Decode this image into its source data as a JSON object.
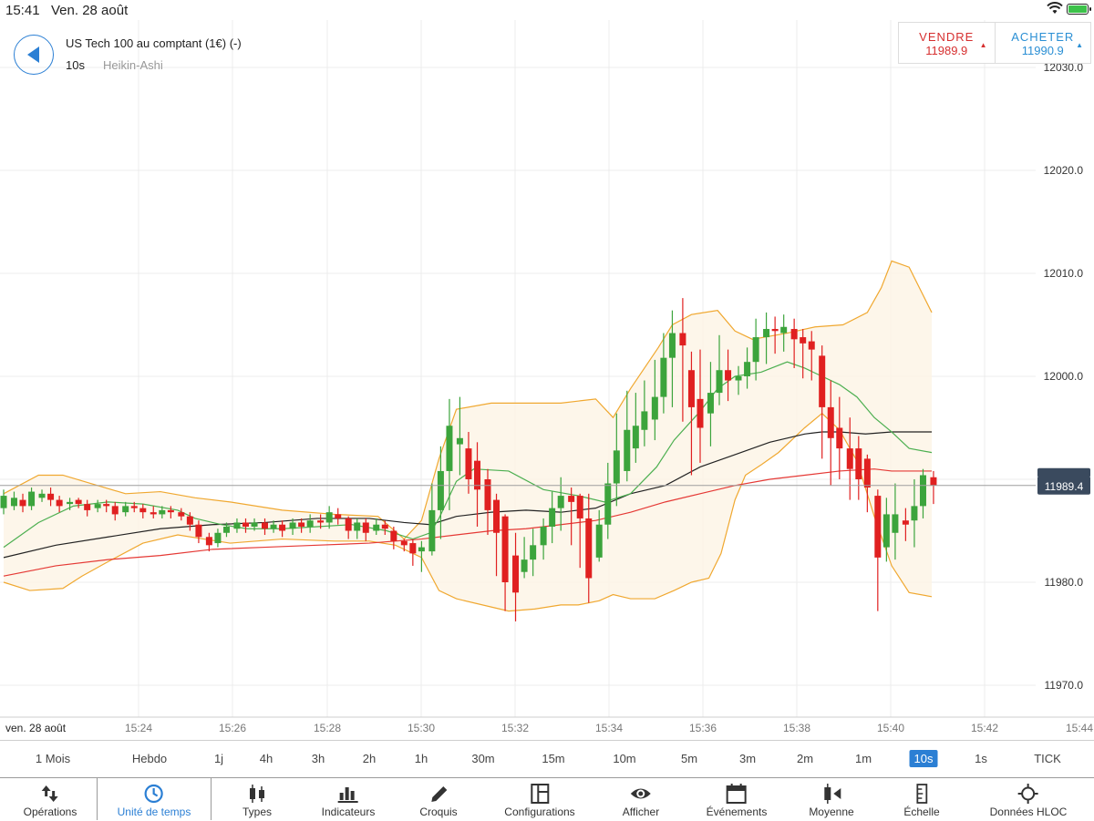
{
  "status_bar": {
    "time": "15:41",
    "date": "Ven. 28 août"
  },
  "header": {
    "instrument": "US Tech 100 au comptant (1€) (-)",
    "interval": "10s",
    "chart_type": "Heikin-Ashi"
  },
  "trade": {
    "sell_label": "VENDRE",
    "sell_price": "11989.9",
    "buy_label": "ACHETER",
    "buy_price": "11990.9"
  },
  "colors": {
    "up": "#3ca43c",
    "down": "#e02020",
    "accent": "#2b7fd4",
    "bollinger": "#f0a830",
    "ma_green": "#4caf50",
    "ma_black": "#222222",
    "ma_red": "#e53935"
  },
  "chart_data": {
    "type": "candlestick",
    "title": "",
    "x_labels": [
      "ven. 28 août",
      "15:24",
      "15:26",
      "15:28",
      "15:30",
      "15:32",
      "15:34",
      "15:36",
      "15:38",
      "15:40",
      "15:42",
      "15:44"
    ],
    "y_ticks": [
      "12030.0",
      "12020.0",
      "12010.0",
      "12000.0",
      "11980.0",
      "11970.0"
    ],
    "ylim": [
      11966.0,
      12031.5
    ],
    "current_price_label": "11989.4",
    "current_price": 11989.4,
    "grid": true,
    "candles": [
      [
        0.0,
        11987.2,
        11988.4,
        11986.6,
        11989.0
      ],
      [
        0.6,
        11987.4,
        11988.2,
        11987.0,
        11988.8
      ],
      [
        1.1,
        11988.0,
        11987.4,
        11986.8,
        11988.6
      ],
      [
        1.6,
        11987.4,
        11988.8,
        11987.0,
        11989.2
      ],
      [
        2.2,
        11988.2,
        11988.6,
        11987.8,
        11989.0
      ],
      [
        2.7,
        11988.6,
        11988.0,
        11987.4,
        11989.2
      ],
      [
        3.2,
        11988.0,
        11987.4,
        11986.8,
        11988.4
      ],
      [
        3.8,
        11987.6,
        11987.8,
        11987.0,
        11988.2
      ],
      [
        4.3,
        11988.0,
        11987.6,
        11987.2,
        11988.2
      ],
      [
        4.8,
        11987.6,
        11987.0,
        11986.4,
        11988.0
      ],
      [
        5.4,
        11987.2,
        11987.6,
        11986.8,
        11988.0
      ],
      [
        5.9,
        11987.6,
        11987.4,
        11986.8,
        11988.0
      ],
      [
        6.4,
        11987.4,
        11986.6,
        11986.0,
        11987.8
      ],
      [
        7.0,
        11986.8,
        11987.4,
        11986.4,
        11987.8
      ],
      [
        7.5,
        11987.4,
        11987.2,
        11986.8,
        11987.8
      ],
      [
        8.0,
        11987.2,
        11986.8,
        11986.2,
        11987.6
      ],
      [
        8.6,
        11986.8,
        11986.6,
        11986.2,
        11987.4
      ],
      [
        9.1,
        11986.6,
        11987.0,
        11986.2,
        11987.4
      ],
      [
        9.6,
        11987.0,
        11986.8,
        11986.2,
        11987.4
      ],
      [
        10.2,
        11986.8,
        11986.4,
        11986.0,
        11987.2
      ],
      [
        10.7,
        11986.4,
        11985.6,
        11985.0,
        11986.8
      ],
      [
        11.2,
        11985.6,
        11984.4,
        11983.8,
        11986.0
      ],
      [
        11.8,
        11984.4,
        11983.6,
        11983.0,
        11984.8
      ],
      [
        12.3,
        11983.8,
        11984.8,
        11983.4,
        11985.2
      ],
      [
        12.8,
        11984.8,
        11985.4,
        11984.4,
        11985.8
      ],
      [
        13.4,
        11985.2,
        11985.8,
        11984.8,
        11986.2
      ],
      [
        13.9,
        11985.8,
        11985.4,
        11984.8,
        11986.2
      ],
      [
        14.4,
        11985.4,
        11985.8,
        11985.0,
        11986.2
      ],
      [
        15.0,
        11985.8,
        11985.2,
        11984.6,
        11986.2
      ],
      [
        15.5,
        11985.2,
        11985.6,
        11984.8,
        11986.0
      ],
      [
        16.0,
        11985.6,
        11985.0,
        11984.4,
        11986.0
      ],
      [
        16.6,
        11985.2,
        11985.8,
        11984.6,
        11986.2
      ],
      [
        17.1,
        11985.8,
        11985.4,
        11984.8,
        11986.2
      ],
      [
        17.6,
        11985.4,
        11986.0,
        11984.8,
        11986.6
      ],
      [
        18.2,
        11986.0,
        11985.8,
        11985.2,
        11986.6
      ],
      [
        18.7,
        11985.8,
        11986.8,
        11985.2,
        11987.4
      ],
      [
        19.2,
        11986.6,
        11986.2,
        11985.6,
        11987.2
      ],
      [
        19.8,
        11986.2,
        11985.0,
        11984.2,
        11986.4
      ],
      [
        20.3,
        11985.0,
        11985.8,
        11984.2,
        11986.2
      ],
      [
        20.8,
        11985.8,
        11984.8,
        11984.0,
        11986.2
      ],
      [
        21.4,
        11985.0,
        11985.6,
        11984.6,
        11986.2
      ],
      [
        21.9,
        11985.6,
        11985.2,
        11984.6,
        11986.0
      ],
      [
        22.4,
        11985.0,
        11984.0,
        11983.2,
        11985.4
      ],
      [
        23.0,
        11984.0,
        11983.6,
        11983.0,
        11984.2
      ],
      [
        23.5,
        11983.8,
        11982.8,
        11981.6,
        11984.2
      ],
      [
        24.0,
        11983.0,
        11983.4,
        11981.0,
        11984.0
      ],
      [
        24.6,
        11983.0,
        11987.0,
        11982.6,
        11989.6
      ],
      [
        25.1,
        11987.0,
        11990.8,
        11984.2,
        11993.2
      ],
      [
        25.6,
        11990.8,
        11995.2,
        11987.0,
        11997.8
      ],
      [
        26.2,
        11993.4,
        11994.0,
        11990.4,
        11998.0
      ],
      [
        26.7,
        11993.0,
        11990.0,
        11988.6,
        11994.6
      ],
      [
        27.2,
        11991.8,
        11989.0,
        11985.4,
        11993.6
      ],
      [
        27.8,
        11990.0,
        11987.0,
        11984.6,
        11991.0
      ],
      [
        28.3,
        11988.0,
        11984.8,
        11980.6,
        11988.6
      ],
      [
        28.8,
        11986.4,
        11980.0,
        11977.2,
        11986.6
      ],
      [
        29.4,
        11982.6,
        11979.0,
        11976.2,
        11984.8
      ],
      [
        29.9,
        11981.0,
        11982.2,
        11980.4,
        11984.4
      ],
      [
        30.4,
        11982.2,
        11983.6,
        11980.6,
        11985.2
      ],
      [
        31.0,
        11983.6,
        11985.4,
        11982.2,
        11986.2
      ],
      [
        31.5,
        11985.4,
        11987.2,
        11983.8,
        11988.8
      ],
      [
        32.0,
        11987.2,
        11988.4,
        11985.0,
        11990.2
      ],
      [
        32.6,
        11988.4,
        11987.8,
        11983.6,
        11989.2
      ],
      [
        33.1,
        11988.4,
        11986.2,
        11981.4,
        11988.6
      ],
      [
        33.6,
        11986.2,
        11980.4,
        11978.0,
        11988.6
      ],
      [
        34.2,
        11982.4,
        11985.6,
        11982.0,
        11987.0
      ],
      [
        34.7,
        11985.6,
        11989.6,
        11984.2,
        11991.6
      ],
      [
        35.2,
        11989.6,
        11992.8,
        11987.4,
        11996.4
      ],
      [
        35.8,
        11990.8,
        11994.8,
        11989.8,
        11998.6
      ],
      [
        36.3,
        11993.0,
        11995.2,
        11991.6,
        11998.4
      ],
      [
        36.8,
        11994.8,
        11996.6,
        11993.2,
        11999.6
      ],
      [
        37.4,
        11995.8,
        11998.0,
        11993.8,
        12001.6
      ],
      [
        37.9,
        11998.0,
        12001.8,
        11996.4,
        12004.2
      ],
      [
        38.4,
        12001.8,
        12004.2,
        11997.0,
        12006.4
      ],
      [
        39.0,
        12004.2,
        12003.0,
        11995.6,
        12007.6
      ],
      [
        39.5,
        12000.6,
        11997.0,
        11990.4,
        12002.4
      ],
      [
        40.0,
        11997.8,
        11995.0,
        11991.6,
        12002.6
      ],
      [
        40.6,
        11996.4,
        11998.4,
        11993.2,
        12001.4
      ],
      [
        41.1,
        11998.4,
        12000.6,
        11997.2,
        12004.0
      ],
      [
        41.6,
        12000.6,
        11999.6,
        11997.6,
        12002.6
      ],
      [
        42.2,
        11999.6,
        12000.0,
        11998.2,
        12001.0
      ],
      [
        42.7,
        12000.0,
        12001.4,
        11998.8,
        12002.8
      ],
      [
        43.2,
        12001.4,
        12003.8,
        11999.6,
        12005.6
      ],
      [
        43.8,
        12003.8,
        12004.6,
        12001.2,
        12006.2
      ],
      [
        44.3,
        12004.6,
        12004.4,
        12002.2,
        12005.8
      ],
      [
        44.8,
        12004.2,
        12004.8,
        12002.4,
        12006.0
      ],
      [
        45.4,
        12004.6,
        12003.6,
        12000.8,
        12005.6
      ],
      [
        45.9,
        12003.8,
        12003.2,
        11999.8,
        12004.6
      ],
      [
        46.4,
        12003.4,
        12002.6,
        11999.6,
        12004.4
      ],
      [
        47.0,
        12002.0,
        11997.0,
        11992.0,
        12003.0
      ],
      [
        47.5,
        11997.0,
        11994.0,
        11989.4,
        11999.6
      ],
      [
        48.0,
        11995.0,
        11993.0,
        11990.0,
        11998.0
      ],
      [
        48.6,
        11993.0,
        11991.0,
        11988.0,
        11996.0
      ],
      [
        49.1,
        11993.0,
        11990.0,
        11988.0,
        11994.2
      ],
      [
        49.6,
        11992.0,
        11989.2,
        11986.8,
        11992.4
      ],
      [
        50.2,
        11988.4,
        11982.4,
        11977.2,
        11989.0
      ],
      [
        50.7,
        11983.4,
        11986.6,
        11982.0,
        11988.2
      ],
      [
        51.2,
        11984.8,
        11986.6,
        11982.2,
        11989.6
      ],
      [
        51.8,
        11986.0,
        11985.6,
        11984.0,
        11987.2
      ],
      [
        52.3,
        11986.0,
        11987.4,
        11983.4,
        11990.0
      ],
      [
        52.8,
        11987.4,
        11990.4,
        11986.2,
        11991.0
      ],
      [
        53.4,
        11990.2,
        11989.4,
        11987.6,
        11990.8
      ]
    ],
    "bollinger_upper": [
      [
        0,
        11988.6
      ],
      [
        2,
        11990.4
      ],
      [
        3.4,
        11990.4
      ],
      [
        5,
        11989.6
      ],
      [
        7,
        11988.6
      ],
      [
        9,
        11988.8
      ],
      [
        11,
        11988.2
      ],
      [
        13,
        11987.8
      ],
      [
        16,
        11987.0
      ],
      [
        19,
        11986.6
      ],
      [
        21.5,
        11986.4
      ],
      [
        23,
        11984.2
      ],
      [
        24,
        11986.0
      ],
      [
        25,
        11992.0
      ],
      [
        26,
        11996.8
      ],
      [
        28,
        11997.4
      ],
      [
        32,
        11997.4
      ],
      [
        34,
        11997.8
      ],
      [
        35,
        11996.0
      ],
      [
        36,
        11998.8
      ],
      [
        37.6,
        12002.8
      ],
      [
        38.4,
        12005.0
      ],
      [
        39.5,
        12006.0
      ],
      [
        41,
        12006.4
      ],
      [
        42,
        12004.4
      ],
      [
        43,
        12003.6
      ],
      [
        45,
        12004.2
      ],
      [
        46.6,
        12004.8
      ],
      [
        48.2,
        12005.0
      ],
      [
        49.6,
        12006.2
      ],
      [
        50.4,
        12008.6
      ],
      [
        51,
        12011.2
      ],
      [
        52,
        12010.6
      ],
      [
        53.3,
        12006.2
      ]
    ],
    "bollinger_lower": [
      [
        0,
        11980.0
      ],
      [
        1.5,
        11979.2
      ],
      [
        3.4,
        11979.4
      ],
      [
        4.5,
        11980.6
      ],
      [
        6,
        11982.0
      ],
      [
        8,
        11983.8
      ],
      [
        10,
        11984.6
      ],
      [
        11.5,
        11984.2
      ],
      [
        13,
        11983.8
      ],
      [
        16,
        11984.2
      ],
      [
        19,
        11984.0
      ],
      [
        21,
        11984.0
      ],
      [
        22.5,
        11983.6
      ],
      [
        24,
        11982.4
      ],
      [
        25,
        11979.2
      ],
      [
        26,
        11978.4
      ],
      [
        28,
        11977.6
      ],
      [
        29,
        11977.2
      ],
      [
        30.5,
        11977.4
      ],
      [
        32,
        11977.8
      ],
      [
        33,
        11977.8
      ],
      [
        34.2,
        11978.2
      ],
      [
        35,
        11978.8
      ],
      [
        36,
        11978.4
      ],
      [
        37.4,
        11978.4
      ],
      [
        38.5,
        11979.2
      ],
      [
        39.5,
        11980.0
      ],
      [
        40.5,
        11980.4
      ],
      [
        41.2,
        11982.8
      ],
      [
        42,
        11988.0
      ],
      [
        42.6,
        11990.4
      ],
      [
        43.5,
        11991.4
      ],
      [
        44.5,
        11992.6
      ],
      [
        46,
        11995.0
      ],
      [
        47,
        11996.4
      ],
      [
        48,
        11994.8
      ],
      [
        49,
        11991.8
      ],
      [
        50,
        11986.4
      ],
      [
        51,
        11981.6
      ],
      [
        52,
        11979.0
      ],
      [
        53.3,
        11978.6
      ]
    ],
    "ma_green": [
      [
        0,
        11983.4
      ],
      [
        2,
        11985.8
      ],
      [
        4,
        11987.4
      ],
      [
        6,
        11987.8
      ],
      [
        8,
        11987.6
      ],
      [
        10,
        11987.0
      ],
      [
        11,
        11986.2
      ],
      [
        12.5,
        11985.6
      ],
      [
        14,
        11985.2
      ],
      [
        16,
        11985.2
      ],
      [
        18,
        11985.4
      ],
      [
        20,
        11985.6
      ],
      [
        22,
        11985.0
      ],
      [
        23.5,
        11984.2
      ],
      [
        24.5,
        11984.8
      ],
      [
        25,
        11986.2
      ],
      [
        26,
        11989.8
      ],
      [
        27,
        11991.0
      ],
      [
        29,
        11990.8
      ],
      [
        31,
        11989.0
      ],
      [
        33,
        11988.4
      ],
      [
        34.5,
        11987.8
      ],
      [
        36,
        11988.6
      ],
      [
        37.5,
        11991.2
      ],
      [
        38.5,
        11993.8
      ],
      [
        40,
        11996.6
      ],
      [
        41,
        11998.8
      ],
      [
        42,
        12000.0
      ],
      [
        43.5,
        12000.4
      ],
      [
        45,
        12001.4
      ],
      [
        46,
        12000.8
      ],
      [
        47,
        12000.0
      ],
      [
        48,
        11999.2
      ],
      [
        49,
        11998.0
      ],
      [
        50,
        11996.0
      ],
      [
        51,
        11994.6
      ],
      [
        52,
        11993.0
      ],
      [
        53.3,
        11992.6
      ]
    ],
    "ma_black": [
      [
        0,
        11982.4
      ],
      [
        3,
        11983.6
      ],
      [
        6,
        11984.4
      ],
      [
        9,
        11985.2
      ],
      [
        12,
        11985.6
      ],
      [
        15,
        11985.8
      ],
      [
        18,
        11986.2
      ],
      [
        21,
        11986.2
      ],
      [
        23,
        11985.8
      ],
      [
        24.5,
        11985.6
      ],
      [
        26,
        11986.4
      ],
      [
        28,
        11986.8
      ],
      [
        30,
        11987.0
      ],
      [
        32,
        11986.8
      ],
      [
        34,
        11987.2
      ],
      [
        36,
        11988.6
      ],
      [
        38,
        11989.4
      ],
      [
        40,
        11991.2
      ],
      [
        42,
        11992.4
      ],
      [
        44,
        11993.6
      ],
      [
        46,
        11994.4
      ],
      [
        47,
        11994.6
      ],
      [
        48,
        11994.6
      ],
      [
        49.5,
        11994.4
      ],
      [
        51,
        11994.6
      ],
      [
        53.3,
        11994.6
      ]
    ],
    "ma_red": [
      [
        0,
        11980.6
      ],
      [
        3,
        11981.6
      ],
      [
        6,
        11982.2
      ],
      [
        9,
        11982.6
      ],
      [
        12,
        11983.2
      ],
      [
        15,
        11983.4
      ],
      [
        18,
        11983.6
      ],
      [
        21,
        11983.8
      ],
      [
        24,
        11984.2
      ],
      [
        26,
        11984.6
      ],
      [
        28,
        11985.0
      ],
      [
        30,
        11985.2
      ],
      [
        32,
        11985.6
      ],
      [
        34,
        11986.0
      ],
      [
        36,
        11986.8
      ],
      [
        38,
        11987.8
      ],
      [
        40,
        11988.6
      ],
      [
        42,
        11989.4
      ],
      [
        44,
        11990.0
      ],
      [
        46,
        11990.4
      ],
      [
        48,
        11990.8
      ],
      [
        50,
        11991.0
      ],
      [
        51,
        11990.8
      ],
      [
        53.3,
        11990.8
      ]
    ]
  },
  "timeframes": [
    "1 Mois",
    "Hebdo",
    "1j",
    "4h",
    "3h",
    "2h",
    "1h",
    "30m",
    "15m",
    "10m",
    "5m",
    "3m",
    "2m",
    "1m",
    "10s",
    "1s",
    "TICK"
  ],
  "timeframe_selected": "10s",
  "toolbar": {
    "items": [
      {
        "label": "Opérations",
        "icon": "arrows-updown-icon"
      },
      {
        "label": "Unité de temps",
        "icon": "clock-icon"
      },
      {
        "label": "Types",
        "icon": "candles-icon"
      },
      {
        "label": "Indicateurs",
        "icon": "bar-chart-icon"
      },
      {
        "label": "Croquis",
        "icon": "pencil-icon"
      },
      {
        "label": "Configurations",
        "icon": "layout-icon"
      },
      {
        "label": "Afficher",
        "icon": "eye-icon"
      },
      {
        "label": "Événements",
        "icon": "calendar-icon"
      },
      {
        "label": "Moyenne",
        "icon": "average-icon"
      },
      {
        "label": "Échelle",
        "icon": "scale-icon"
      },
      {
        "label": "Données HLOC",
        "icon": "crosshair-icon"
      }
    ],
    "selected": "Unité de temps"
  }
}
